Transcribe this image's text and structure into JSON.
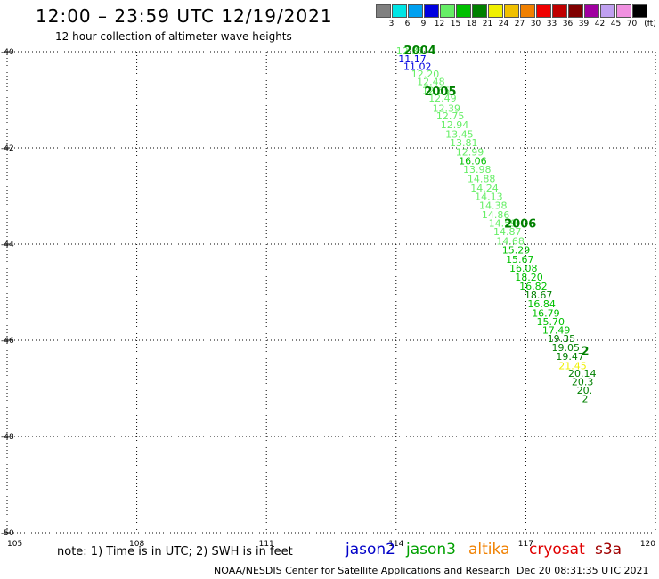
{
  "header": {
    "title": "12:00 – 23:59 UTC 12/19/2021",
    "subtitle": "12 hour collection of altimeter wave heights"
  },
  "legend": {
    "unit": "(ft)",
    "items": [
      {
        "label": "3",
        "color": "#808080"
      },
      {
        "label": "6",
        "color": "#00e5e5"
      },
      {
        "label": "9",
        "color": "#00a0f0"
      },
      {
        "label": "12",
        "color": "#0000e0"
      },
      {
        "label": "15",
        "color": "#66ee66"
      },
      {
        "label": "18",
        "color": "#00c000"
      },
      {
        "label": "21",
        "color": "#008000"
      },
      {
        "label": "24",
        "color": "#f0f000"
      },
      {
        "label": "27",
        "color": "#f0c000"
      },
      {
        "label": "30",
        "color": "#f08000"
      },
      {
        "label": "33",
        "color": "#f00000"
      },
      {
        "label": "36",
        "color": "#c00000"
      },
      {
        "label": "39",
        "color": "#800000"
      },
      {
        "label": "42",
        "color": "#a000a0"
      },
      {
        "label": "45",
        "color": "#c0a0f0"
      },
      {
        "label": "70",
        "color": "#f090e0"
      },
      {
        "label": "",
        "color": "#000000"
      }
    ]
  },
  "axes": {
    "lat_labels": [
      "-40",
      "-42",
      "-44",
      "-46",
      "-48",
      "-50"
    ],
    "lon_labels": [
      "105",
      "108",
      "111",
      "114",
      "117",
      "120"
    ]
  },
  "chart_data": {
    "type": "scatter",
    "lon_range": [
      105,
      120
    ],
    "lat_range": [
      -50,
      -40
    ],
    "lon_gridlines": [
      108,
      111,
      114,
      117
    ],
    "lat_gridlines": [
      -42,
      -44,
      -46,
      -48
    ],
    "points": [
      {
        "lon": 114.0,
        "lat": -40.0,
        "v": "12.35",
        "c": "#66ee66"
      },
      {
        "lon": 114.05,
        "lat": -40.17,
        "v": "11.17",
        "c": "#0000e0"
      },
      {
        "lon": 114.17,
        "lat": -40.32,
        "v": "11.02",
        "c": "#0000e0"
      },
      {
        "lon": 114.35,
        "lat": -40.48,
        "v": "12.20",
        "c": "#66ee66"
      },
      {
        "lon": 114.48,
        "lat": -40.64,
        "v": "12.48",
        "c": "#66ee66"
      },
      {
        "lon": 114.6,
        "lat": -40.82,
        "v": "12.65",
        "c": "#66ee66"
      },
      {
        "lon": 114.75,
        "lat": -40.98,
        "v": "12.49",
        "c": "#66ee66"
      },
      {
        "lon": 114.84,
        "lat": -41.19,
        "v": "12.39",
        "c": "#66ee66"
      },
      {
        "lon": 114.93,
        "lat": -41.35,
        "v": "12.75",
        "c": "#66ee66"
      },
      {
        "lon": 115.03,
        "lat": -41.54,
        "v": "12.94",
        "c": "#66ee66"
      },
      {
        "lon": 115.14,
        "lat": -41.73,
        "v": "13.45",
        "c": "#66ee66"
      },
      {
        "lon": 115.24,
        "lat": -41.91,
        "v": "13.81",
        "c": "#66ee66"
      },
      {
        "lon": 115.38,
        "lat": -42.1,
        "v": "12.99",
        "c": "#66ee66"
      },
      {
        "lon": 115.45,
        "lat": -42.29,
        "v": "16.06",
        "c": "#00c000"
      },
      {
        "lon": 115.55,
        "lat": -42.46,
        "v": "13.98",
        "c": "#66ee66"
      },
      {
        "lon": 115.65,
        "lat": -42.66,
        "v": "14.88",
        "c": "#66ee66"
      },
      {
        "lon": 115.72,
        "lat": -42.85,
        "v": "14.24",
        "c": "#66ee66"
      },
      {
        "lon": 115.82,
        "lat": -43.03,
        "v": "14.13",
        "c": "#66ee66"
      },
      {
        "lon": 115.92,
        "lat": -43.21,
        "v": "14.38",
        "c": "#66ee66"
      },
      {
        "lon": 115.98,
        "lat": -43.41,
        "v": "14.86",
        "c": "#66ee66"
      },
      {
        "lon": 116.14,
        "lat": -43.58,
        "v": "14.59",
        "c": "#66ee66"
      },
      {
        "lon": 116.25,
        "lat": -43.76,
        "v": "14.87",
        "c": "#66ee66"
      },
      {
        "lon": 116.32,
        "lat": -43.95,
        "v": "14.68",
        "c": "#66ee66"
      },
      {
        "lon": 116.45,
        "lat": -44.14,
        "v": "15.29",
        "c": "#00c000"
      },
      {
        "lon": 116.54,
        "lat": -44.33,
        "v": "15.67",
        "c": "#00c000"
      },
      {
        "lon": 116.62,
        "lat": -44.52,
        "v": "16.08",
        "c": "#00c000"
      },
      {
        "lon": 116.75,
        "lat": -44.7,
        "v": "18.20",
        "c": "#00c000"
      },
      {
        "lon": 116.85,
        "lat": -44.89,
        "v": "16.82",
        "c": "#00c000"
      },
      {
        "lon": 116.97,
        "lat": -45.07,
        "v": "18.67",
        "c": "#008000"
      },
      {
        "lon": 117.04,
        "lat": -45.26,
        "v": "16.84",
        "c": "#00c000"
      },
      {
        "lon": 117.14,
        "lat": -45.45,
        "v": "16.79",
        "c": "#00c000"
      },
      {
        "lon": 117.25,
        "lat": -45.63,
        "v": "15.70",
        "c": "#00c000"
      },
      {
        "lon": 117.38,
        "lat": -45.81,
        "v": "17.49",
        "c": "#00c000"
      },
      {
        "lon": 117.5,
        "lat": -45.98,
        "v": "19.35",
        "c": "#008000"
      },
      {
        "lon": 117.6,
        "lat": -46.17,
        "v": "19.05",
        "c": "#008000"
      },
      {
        "lon": 117.7,
        "lat": -46.35,
        "v": "19.47",
        "c": "#008000"
      },
      {
        "lon": 117.76,
        "lat": -46.55,
        "v": "21.45",
        "c": "#f0f000"
      },
      {
        "lon": 117.98,
        "lat": -46.7,
        "v": "20.14",
        "c": "#008000"
      },
      {
        "lon": 118.06,
        "lat": -46.88,
        "v": "20.3",
        "c": "#008000"
      },
      {
        "lon": 118.18,
        "lat": -47.06,
        "v": "20.",
        "c": "#008000"
      },
      {
        "lon": 118.3,
        "lat": -47.23,
        "v": "2",
        "c": "#008000"
      }
    ],
    "pass_labels": [
      {
        "lon": 114.18,
        "lat": -40.0,
        "text": "2004"
      },
      {
        "lon": 114.65,
        "lat": -40.85,
        "text": "2005"
      },
      {
        "lon": 116.5,
        "lat": -43.6,
        "text": "2006"
      },
      {
        "lon": 118.28,
        "lat": -46.25,
        "text": "2"
      }
    ]
  },
  "note": "note: 1) Time is in UTC; 2) SWH is in feet",
  "satellites": [
    {
      "name": "jason2",
      "color": "#0000c8"
    },
    {
      "name": "jason3",
      "color": "#00a000"
    },
    {
      "name": "altika",
      "color": "#f08000"
    },
    {
      "name": "cryosat",
      "color": "#e00000"
    },
    {
      "name": "s3a",
      "color": "#a00000"
    }
  ],
  "footer": {
    "org": "NOAA/NESDIS Center for Satellite Applications and Research",
    "timestamp": "Dec 20 08:31:35 UTC 2021"
  }
}
